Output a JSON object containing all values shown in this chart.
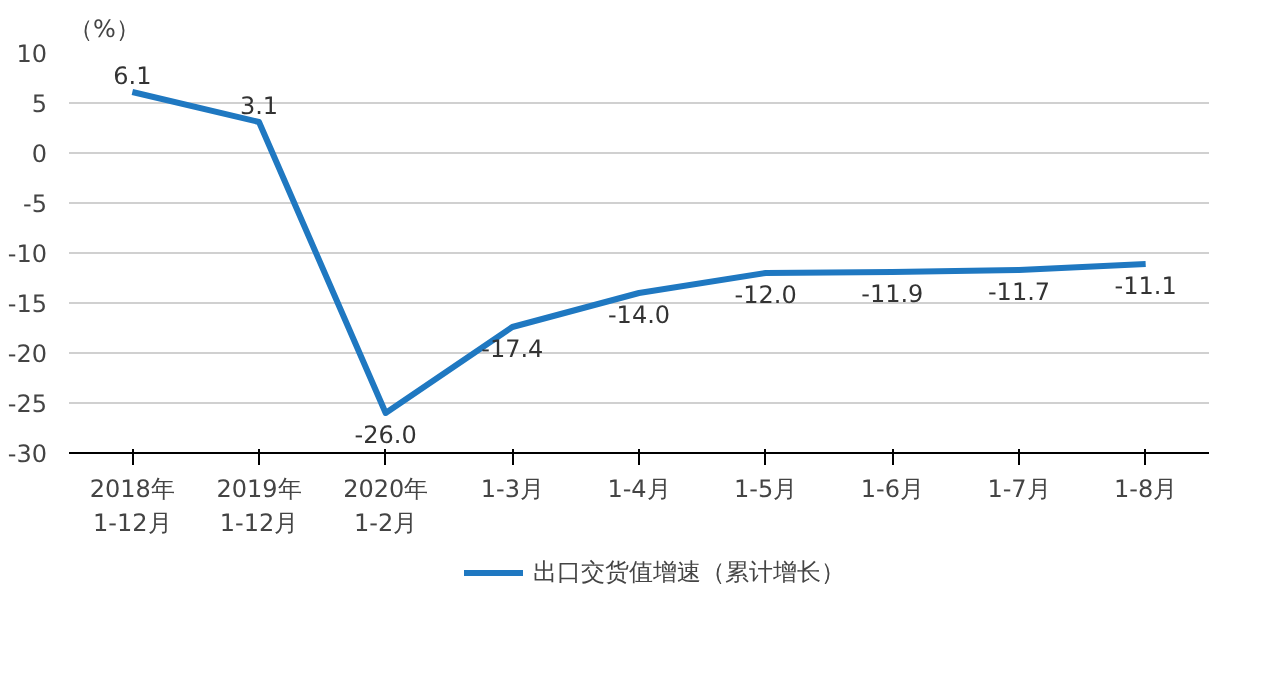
{
  "chart_data": {
    "type": "line",
    "ylabel": "（%）",
    "categories": [
      "2018年\n1-12月",
      "2019年\n1-12月",
      "2020年\n1-2月",
      "1-3月",
      "1-4月",
      "1-5月",
      "1-6月",
      "1-7月",
      "1-8月"
    ],
    "series": [
      {
        "name": "出口交货值增速（累计增长）",
        "color": "#1f78c1",
        "values": [
          6.1,
          3.1,
          -26.0,
          -17.4,
          -14.0,
          -12.0,
          -11.9,
          -11.7,
          -11.1
        ],
        "value_labels": [
          "6.1",
          "3.1",
          "-26.0",
          "-17.4",
          "-14.0",
          "-12.0",
          "-11.9",
          "-11.7",
          "-11.1"
        ]
      }
    ],
    "ylim": [
      -30,
      10
    ],
    "yticks": [
      -30,
      -25,
      -20,
      -15,
      -10,
      -5,
      0,
      5,
      10
    ],
    "grid": "y",
    "legend": "bottom",
    "line_style": "solid"
  }
}
